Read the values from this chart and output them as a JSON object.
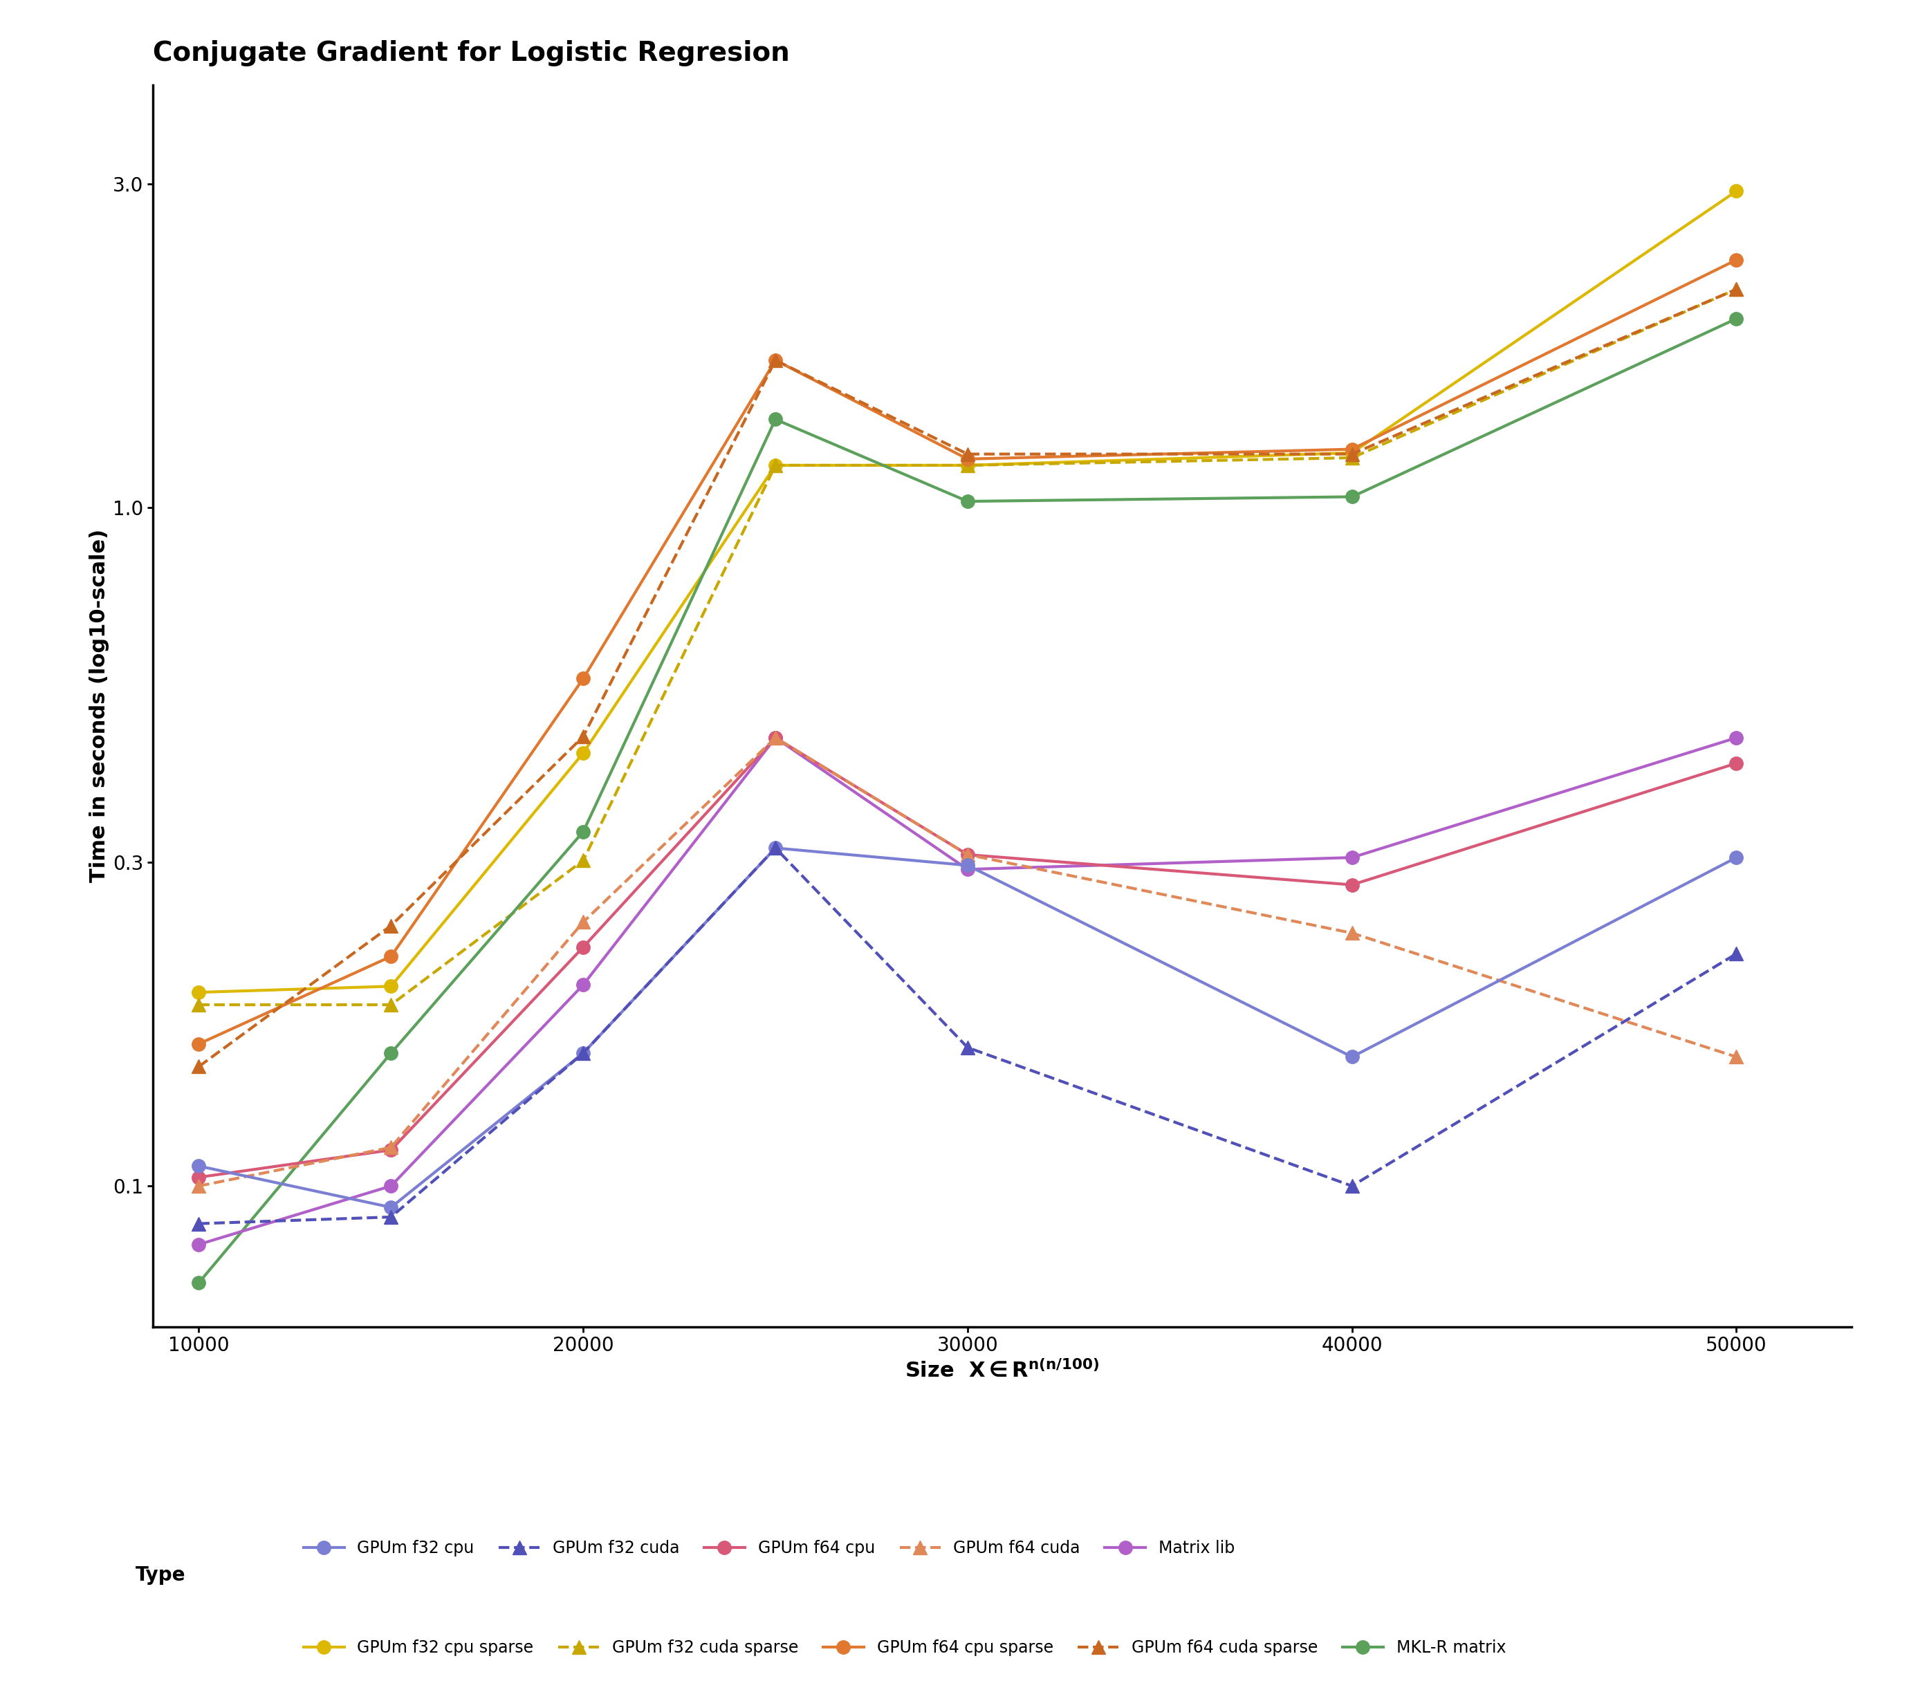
{
  "title": "Conjugate Gradient for Logistic Regresion",
  "ylabel": "Time in seconds (log10-scale)",
  "x": [
    10000,
    15000,
    20000,
    25000,
    30000,
    40000,
    50000
  ],
  "series": {
    "GPUm f32 cpu": {
      "y": [
        0.107,
        0.093,
        0.157,
        0.315,
        0.297,
        0.155,
        0.305
      ],
      "color": "#7B7FD4",
      "linestyle": "solid",
      "marker": "o"
    },
    "GPUm f32 cuda": {
      "y": [
        0.088,
        0.09,
        0.157,
        0.315,
        0.16,
        0.1,
        0.22
      ],
      "color": "#5050B8",
      "linestyle": "dashed",
      "marker": "^"
    },
    "GPUm f64 cpu": {
      "y": [
        0.103,
        0.113,
        0.225,
        0.458,
        0.308,
        0.278,
        0.42
      ],
      "color": "#D85878",
      "linestyle": "solid",
      "marker": "o"
    },
    "GPUm f64 cuda": {
      "y": [
        0.1,
        0.114,
        0.245,
        0.458,
        0.308,
        0.236,
        0.155
      ],
      "color": "#E08858",
      "linestyle": "dashed",
      "marker": "^"
    },
    "Matrix lib": {
      "y": [
        0.082,
        0.1,
        0.198,
        0.458,
        0.293,
        0.305,
        0.458
      ],
      "color": "#B060C8",
      "linestyle": "solid",
      "marker": "o"
    },
    "GPUm f32 cpu sparse": {
      "y": [
        0.193,
        0.197,
        0.435,
        1.155,
        1.155,
        1.205,
        2.93
      ],
      "color": "#DDB800",
      "linestyle": "solid",
      "marker": "o"
    },
    "GPUm f32 cuda sparse": {
      "y": [
        0.185,
        0.185,
        0.302,
        1.155,
        1.155,
        1.185,
        2.1
      ],
      "color": "#C8A800",
      "linestyle": "dashed",
      "marker": "^"
    },
    "GPUm f64 cpu sparse": {
      "y": [
        0.162,
        0.218,
        0.56,
        1.65,
        1.18,
        1.22,
        2.32
      ],
      "color": "#E07830",
      "linestyle": "solid",
      "marker": "o"
    },
    "GPUm f64 cuda sparse": {
      "y": [
        0.15,
        0.242,
        0.46,
        1.65,
        1.2,
        1.2,
        2.1
      ],
      "color": "#C86820",
      "linestyle": "dashed",
      "marker": "^"
    },
    "MKL-R matrix": {
      "y": [
        0.072,
        0.157,
        0.333,
        1.35,
        1.022,
        1.038,
        1.9
      ],
      "color": "#5BA05B",
      "linestyle": "solid",
      "marker": "o"
    }
  },
  "yticks": [
    0.1,
    0.3,
    1.0,
    3.0
  ],
  "ytick_labels": [
    "0.1",
    "0.3",
    "1.0",
    "3.0"
  ],
  "xticks": [
    10000,
    20000,
    30000,
    40000,
    50000
  ],
  "xlim": [
    8800,
    53000
  ],
  "ylim": [
    0.062,
    4.2
  ],
  "background_color": "#FFFFFF",
  "title_fontsize": 28,
  "axis_fontsize": 22,
  "tick_fontsize": 20,
  "legend_fontsize": 17,
  "linewidth": 3.0,
  "markersize": 14
}
